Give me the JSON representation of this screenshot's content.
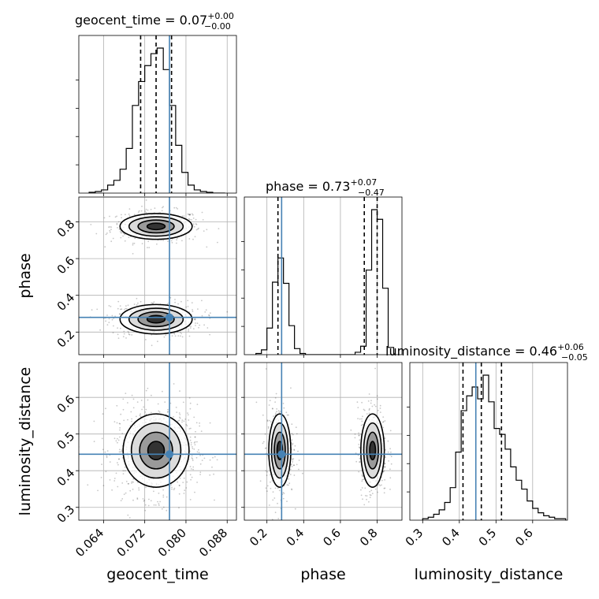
{
  "chart_data": {
    "type": "corner",
    "parameters": [
      "geocent_time",
      "phase",
      "luminosity_distance"
    ],
    "injection": {
      "geocent_time": 0.0768,
      "phase": 0.28,
      "luminosity_distance": 0.445
    },
    "injection_color": "#4682b4",
    "titles": {
      "geocent_time": {
        "name": "geocent_time",
        "median": "0.07",
        "plus": "+0.00",
        "minus": "−0.00"
      },
      "phase": {
        "name": "phase",
        "median": "0.73",
        "plus": "+0.07",
        "minus": "−0.47"
      },
      "luminosity_distance": {
        "name": "luminosity_distance",
        "median": "0.46",
        "plus": "+0.06",
        "minus": "−0.05"
      }
    },
    "axes": {
      "geocent_time": {
        "range": [
          0.0592,
          0.0898
        ],
        "ticks": [
          0.064,
          0.072,
          0.08,
          0.088
        ],
        "tick_labels": [
          "0.064",
          "0.072",
          "0.080",
          "0.088"
        ]
      },
      "phase": {
        "range": [
          0.077,
          0.935
        ],
        "ticks": [
          0.2,
          0.4,
          0.6,
          0.8
        ],
        "tick_labels": [
          "0.2",
          "0.4",
          "0.6",
          "0.8"
        ]
      },
      "luminosity_distance": {
        "range": [
          0.265,
          0.695
        ],
        "ticks": [
          0.3,
          0.4,
          0.5,
          0.6
        ],
        "tick_labels": [
          "0.3",
          "0.4",
          "0.5",
          "0.6"
        ]
      }
    },
    "marginals": {
      "geocent_time": {
        "bin_edges": [
          0.0612,
          0.0624,
          0.0636,
          0.0648,
          0.066,
          0.0672,
          0.0684,
          0.0696,
          0.0708,
          0.072,
          0.0732,
          0.0744,
          0.0756,
          0.0768,
          0.078,
          0.0792,
          0.0804,
          0.0816,
          0.0828,
          0.084,
          0.0852,
          0.0864,
          0.0876
        ],
        "counts": [
          1,
          2,
          4,
          10,
          16,
          30,
          56,
          110,
          140,
          160,
          175,
          182,
          155,
          110,
          60,
          26,
          10,
          4,
          2,
          1,
          0,
          0
        ],
        "quantiles": [
          0.0712,
          0.0742,
          0.0772
        ]
      },
      "phase": {
        "bin_edges": [
          0.14,
          0.17,
          0.2,
          0.23,
          0.26,
          0.29,
          0.32,
          0.35,
          0.38,
          0.41,
          0.44,
          0.47,
          0.5,
          0.53,
          0.56,
          0.59,
          0.62,
          0.65,
          0.68,
          0.71,
          0.74,
          0.77,
          0.8,
          0.83,
          0.86,
          0.89
        ],
        "counts": [
          1,
          4,
          22,
          60,
          80,
          59,
          24,
          5,
          1,
          0,
          0,
          0,
          0,
          0,
          0,
          0,
          0,
          0,
          2,
          7,
          70,
          120,
          112,
          55,
          6
        ],
        "quantiles": [
          0.26,
          0.73,
          0.8
        ]
      },
      "luminosity_distance": {
        "bin_edges": [
          0.3,
          0.315,
          0.33,
          0.345,
          0.36,
          0.375,
          0.39,
          0.405,
          0.42,
          0.435,
          0.45,
          0.465,
          0.48,
          0.495,
          0.51,
          0.525,
          0.54,
          0.555,
          0.57,
          0.585,
          0.6,
          0.615,
          0.63,
          0.645,
          0.66,
          0.675,
          0.69
        ],
        "counts": [
          1,
          2,
          4,
          7,
          12,
          22,
          46,
          74,
          84,
          90,
          82,
          98,
          80,
          62,
          58,
          48,
          36,
          27,
          21,
          13,
          8,
          5,
          3,
          2,
          1,
          1
        ],
        "quantiles": [
          0.41,
          0.46,
          0.515
        ]
      }
    },
    "joint_2d": {
      "phase_vs_geocent_time": {
        "blobs": [
          {
            "center": [
              0.0742,
              0.775
            ],
            "spread": [
              0.0035,
              0.035
            ],
            "weight": 0.5
          },
          {
            "center": [
              0.0742,
              0.27
            ],
            "spread": [
              0.0035,
              0.04
            ],
            "weight": 0.5
          }
        ]
      },
      "luminosity_distance_vs_geocent_time": {
        "blobs": [
          {
            "center": [
              0.0742,
              0.455
            ],
            "spread": [
              0.0032,
              0.05
            ],
            "weight": 1.0
          }
        ]
      },
      "luminosity_distance_vs_phase": {
        "blobs": [
          {
            "center": [
              0.27,
              0.455
            ],
            "spread": [
              0.03,
              0.05
            ],
            "weight": 0.5
          },
          {
            "center": [
              0.775,
              0.455
            ],
            "spread": [
              0.032,
              0.05
            ],
            "weight": 0.5
          }
        ]
      }
    },
    "grid": true
  }
}
